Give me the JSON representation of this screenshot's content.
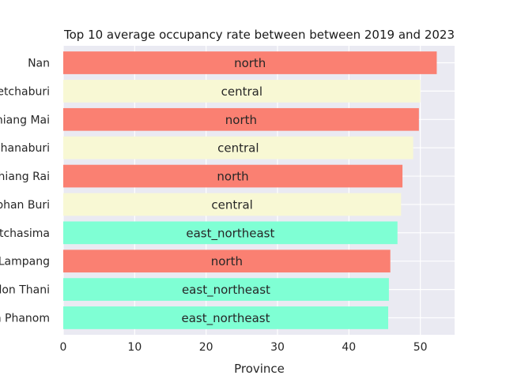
{
  "chart_data": {
    "type": "bar",
    "orientation": "horizontal",
    "title": "Top 10 average occupancy rate between between 2019 and 2023",
    "xlabel": "Province",
    "ylabel": "",
    "xlim": [
      0,
      54.8
    ],
    "xticks": [
      0,
      10,
      20,
      30,
      40,
      50
    ],
    "grid": true,
    "categories": [
      "Nan",
      "Phetchaburi",
      "Chiang Mai",
      "Kanchanaburi",
      "Chiang Rai",
      "Suphan Buri",
      "Nakhon Ratchasima",
      "Lampang",
      "Udon Thani",
      "Nakhon Phanom"
    ],
    "values": [
      52.3,
      50.0,
      49.8,
      49.0,
      47.5,
      47.3,
      46.8,
      45.8,
      45.6,
      45.5
    ],
    "bar_labels": [
      "north",
      "central",
      "north",
      "central",
      "north",
      "central",
      "east_northeast",
      "north",
      "east_northeast",
      "east_northeast"
    ],
    "colors": {
      "north": "#fa8072",
      "central": "#f8f8d4",
      "east_northeast": "#7fffd4",
      "background": "#eaeaf2",
      "grid": "#ffffff"
    }
  }
}
